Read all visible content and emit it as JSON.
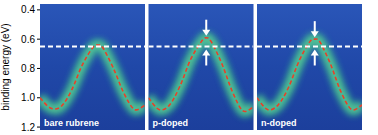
{
  "chart_data": [
    {
      "type": "line",
      "title": "bare rubrene",
      "y_label": "binding energy (eV)",
      "x": [
        0,
        0.1,
        0.2,
        0.3,
        0.4,
        0.5,
        0.55,
        0.6,
        0.7,
        0.8,
        0.9,
        1.0
      ],
      "series": [
        {
          "color": "#e8402a",
          "line_style": "dashed",
          "values": [
            1.0,
            1.07,
            1.06,
            0.95,
            0.78,
            0.66,
            0.64,
            0.66,
            0.8,
            0.97,
            1.08,
            1.05
          ]
        }
      ],
      "reference_value": 0.65,
      "xlim": [
        0,
        1
      ],
      "ylim": [
        0.36,
        1.22
      ],
      "yticks": [
        0.4,
        0.6,
        0.8,
        {
          "value": 1,
          "label": "1.0"
        },
        1.2
      ],
      "tick_labels": "y"
    },
    {
      "type": "line",
      "title": "p-doped",
      "x": [
        0,
        0.1,
        0.2,
        0.3,
        0.4,
        0.5,
        0.55,
        0.6,
        0.7,
        0.8,
        0.9,
        1.0
      ],
      "series": [
        {
          "color": "#e8402a",
          "line_style": "dashed",
          "values": [
            1.0,
            1.08,
            1.05,
            0.92,
            0.74,
            0.62,
            0.59,
            0.62,
            0.77,
            0.96,
            1.09,
            1.06
          ]
        }
      ],
      "reference_value": 0.65,
      "peak_shift": [
        0.65,
        0.59
      ],
      "xlim": [
        0,
        1
      ],
      "ylim": [
        0.36,
        1.22
      ],
      "tick_labels": false
    },
    {
      "type": "line",
      "title": "n-doped",
      "x": [
        0,
        0.1,
        0.2,
        0.3,
        0.4,
        0.5,
        0.55,
        0.6,
        0.7,
        0.8,
        0.9,
        1.0
      ],
      "series": [
        {
          "color": "#e8402a",
          "line_style": "dashed",
          "values": [
            1.0,
            1.08,
            1.05,
            0.93,
            0.75,
            0.62,
            0.6,
            0.62,
            0.77,
            0.96,
            1.08,
            1.05
          ]
        }
      ],
      "reference_value": 0.65,
      "peak_shift": [
        0.65,
        0.6
      ],
      "xlim": [
        0,
        1
      ],
      "ylim": [
        0.36,
        1.22
      ],
      "tick_labels": false
    }
  ]
}
